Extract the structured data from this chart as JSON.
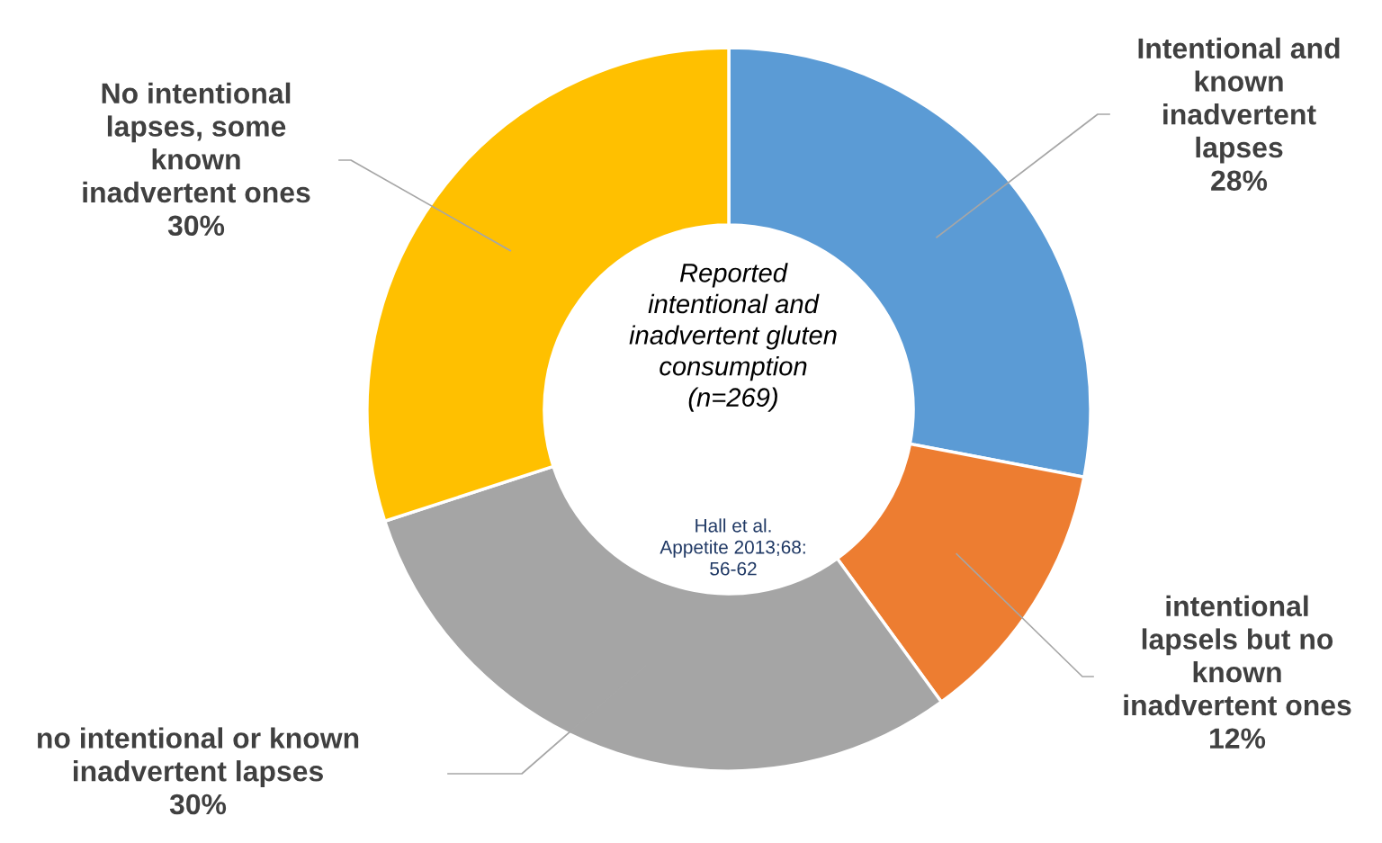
{
  "chart_data": {
    "type": "donut",
    "title": "Reported\nintentional and\ninadvertent gluten\nconsumption\n(n=269)",
    "categories": [
      "Intentional and\nknown\ninadvertent\nlapses",
      "intentional\nlapsels but no\nknown\ninadvertent ones",
      "no intentional or known\ninadvertent lapses",
      "No intentional\nlapses, some\nknown\ninadvertent ones"
    ],
    "values": [
      28,
      12,
      30,
      30
    ],
    "colors": [
      "#5b9bd5",
      "#ed7d31",
      "#a5a5a5",
      "#ffc000"
    ],
    "value_labels": [
      "28%",
      "12%",
      "30%",
      "30%"
    ],
    "annotations": [
      "Hall et al.\nAppetite 2013;68:\n56-62"
    ]
  }
}
